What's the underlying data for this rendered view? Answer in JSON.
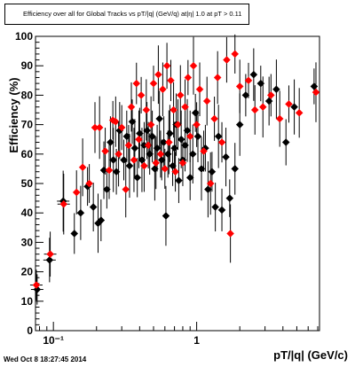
{
  "header": {
    "title": "Efficiency over all for Global Tracks vs pT/|q| (GeV/q) at|η| 1.0 at pT > 0.11"
  },
  "footer": {
    "timestamp": "Wed Oct  8 18:27:45 2014"
  },
  "colors": {
    "series_black": "#000000",
    "series_red": "#ff0000"
  },
  "chart_data": {
    "type": "scatter",
    "title": "Efficiency over all for Global Tracks vs pT/|q| (GeV/q) at|η| 1.0 at pT > 0.11",
    "xlabel": "pT/|q| (GeV/c)",
    "ylabel": "Efficiency (%)",
    "xscale": "log",
    "xlim": [
      0.075,
      7.2
    ],
    "ylim": [
      0,
      100
    ],
    "x_tick_labels": [
      "10⁻¹",
      "1"
    ],
    "y_tick_labels": [
      "0",
      "10",
      "20",
      "30",
      "40",
      "50",
      "60",
      "70",
      "80",
      "90",
      "100"
    ],
    "grid": false,
    "legend": "none",
    "series": [
      {
        "color": "#000000",
        "points": [
          [
            0.077,
            14
          ],
          [
            0.094,
            24
          ],
          [
            0.117,
            44
          ],
          [
            0.14,
            33
          ],
          [
            0.155,
            40
          ],
          [
            0.173,
            49
          ],
          [
            0.19,
            42
          ],
          [
            0.205,
            36.5
          ],
          [
            0.215,
            37.5
          ],
          [
            0.225,
            54.5
          ],
          [
            0.236,
            48
          ],
          [
            0.25,
            64
          ],
          [
            0.262,
            58
          ],
          [
            0.275,
            54
          ],
          [
            0.29,
            68
          ],
          [
            0.31,
            58
          ],
          [
            0.325,
            66
          ],
          [
            0.34,
            56
          ],
          [
            0.355,
            71
          ],
          [
            0.37,
            62
          ],
          [
            0.385,
            52
          ],
          [
            0.4,
            67
          ],
          [
            0.415,
            58
          ],
          [
            0.43,
            63
          ],
          [
            0.45,
            68
          ],
          [
            0.47,
            60
          ],
          [
            0.49,
            66
          ],
          [
            0.51,
            55
          ],
          [
            0.53,
            62
          ],
          [
            0.55,
            72
          ],
          [
            0.57,
            58
          ],
          [
            0.59,
            64
          ],
          [
            0.61,
            39
          ],
          [
            0.63,
            60
          ],
          [
            0.65,
            67
          ],
          [
            0.68,
            56
          ],
          [
            0.7,
            62
          ],
          [
            0.72,
            70
          ],
          [
            0.75,
            51
          ],
          [
            0.78,
            65
          ],
          [
            0.8,
            58
          ],
          [
            0.83,
            63
          ],
          [
            0.86,
            68
          ],
          [
            0.9,
            52
          ],
          [
            0.94,
            60
          ],
          [
            0.98,
            74
          ],
          [
            1.02,
            66
          ],
          [
            1.08,
            55
          ],
          [
            1.15,
            62
          ],
          [
            1.2,
            48
          ],
          [
            1.28,
            54
          ],
          [
            1.35,
            42
          ],
          [
            1.42,
            66
          ],
          [
            1.5,
            41
          ],
          [
            1.6,
            59
          ],
          [
            1.7,
            45
          ],
          [
            1.85,
            55
          ],
          [
            2.0,
            70
          ],
          [
            2.2,
            80
          ],
          [
            2.5,
            87
          ],
          [
            2.8,
            84
          ],
          [
            3.2,
            78
          ],
          [
            3.6,
            82
          ],
          [
            4.2,
            64
          ],
          [
            4.8,
            76
          ],
          [
            6.6,
            83
          ]
        ]
      },
      {
        "color": "#ff0000",
        "points": [
          [
            0.076,
            15.5
          ],
          [
            0.095,
            26
          ],
          [
            0.118,
            43
          ],
          [
            0.145,
            47
          ],
          [
            0.16,
            55.5
          ],
          [
            0.178,
            50
          ],
          [
            0.195,
            69
          ],
          [
            0.21,
            69
          ],
          [
            0.23,
            61
          ],
          [
            0.245,
            54.5
          ],
          [
            0.26,
            71.5
          ],
          [
            0.272,
            71
          ],
          [
            0.285,
            60
          ],
          [
            0.3,
            69
          ],
          [
            0.32,
            48
          ],
          [
            0.335,
            63
          ],
          [
            0.35,
            76
          ],
          [
            0.365,
            58
          ],
          [
            0.38,
            84
          ],
          [
            0.395,
            65
          ],
          [
            0.41,
            80
          ],
          [
            0.43,
            56
          ],
          [
            0.445,
            75
          ],
          [
            0.46,
            63
          ],
          [
            0.48,
            70
          ],
          [
            0.5,
            84
          ],
          [
            0.52,
            57
          ],
          [
            0.54,
            87
          ],
          [
            0.56,
            60
          ],
          [
            0.58,
            82
          ],
          [
            0.6,
            55
          ],
          [
            0.62,
            90
          ],
          [
            0.64,
            64
          ],
          [
            0.66,
            85
          ],
          [
            0.69,
            75
          ],
          [
            0.71,
            54
          ],
          [
            0.74,
            70
          ],
          [
            0.77,
            80
          ],
          [
            0.8,
            57
          ],
          [
            0.83,
            76
          ],
          [
            0.87,
            86
          ],
          [
            0.9,
            66
          ],
          [
            0.95,
            90
          ],
          [
            1.0,
            70
          ],
          [
            1.05,
            82
          ],
          [
            1.12,
            61
          ],
          [
            1.18,
            78
          ],
          [
            1.25,
            50
          ],
          [
            1.33,
            72
          ],
          [
            1.4,
            86
          ],
          [
            1.5,
            64
          ],
          [
            1.62,
            92
          ],
          [
            1.72,
            33
          ],
          [
            1.85,
            94
          ],
          [
            2.0,
            83
          ],
          [
            2.3,
            85
          ],
          [
            2.55,
            75
          ],
          [
            2.9,
            76
          ],
          [
            3.3,
            80
          ],
          [
            3.8,
            72
          ],
          [
            4.4,
            77
          ],
          [
            5.2,
            74
          ],
          [
            6.8,
            81
          ]
        ]
      }
    ]
  }
}
